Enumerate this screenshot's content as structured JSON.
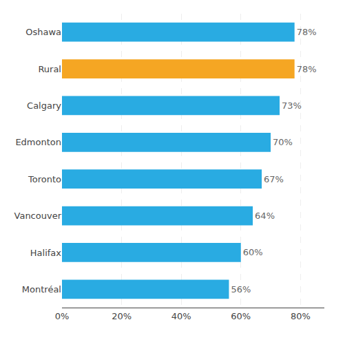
{
  "chart_data": {
    "type": "bar",
    "orientation": "horizontal",
    "categories": [
      "Montréal",
      "Halifax",
      "Vancouver",
      "Toronto",
      "Edmonton",
      "Calgary",
      "Rural",
      "Oshawa"
    ],
    "values": [
      56,
      60,
      64,
      67,
      70,
      73,
      78,
      78
    ],
    "value_labels": [
      "56%",
      "60%",
      "64%",
      "67%",
      "70%",
      "73%",
      "78%",
      "78%"
    ],
    "data_labels": true,
    "colors": [
      "#29abe2",
      "#29abe2",
      "#29abe2",
      "#29abe2",
      "#29abe2",
      "#29abe2",
      "#f5a623",
      "#29abe2"
    ],
    "xlim": [
      0,
      88
    ],
    "xticks": [
      {
        "value": 0,
        "label": "0%"
      },
      {
        "value": 20,
        "label": "20%"
      },
      {
        "value": 40,
        "label": "40%"
      },
      {
        "value": 60,
        "label": "60%"
      },
      {
        "value": 80,
        "label": "80%"
      }
    ],
    "grid": true
  }
}
